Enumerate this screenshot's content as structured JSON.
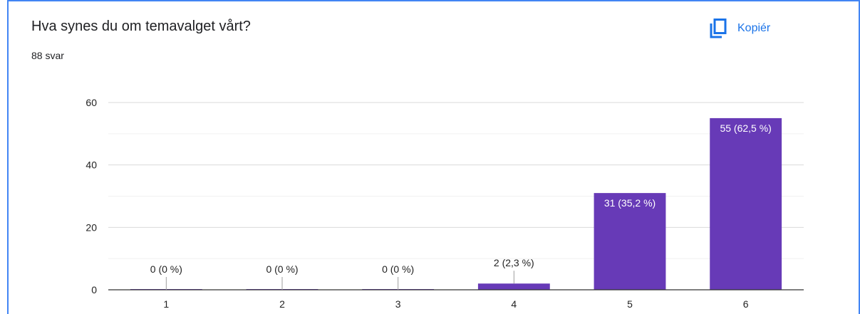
{
  "question": {
    "title": "Hva synes du om temavalget vårt?",
    "responses": "88 svar"
  },
  "actions": {
    "copy_label": "Kopiér",
    "copy_icon": "copy-icon"
  },
  "colors": {
    "bar": "#673ab7",
    "accent": "#1a73e8",
    "frame": "#4285f4"
  },
  "chart_data": {
    "type": "bar",
    "title": "Hva synes du om temavalget vårt?",
    "xlabel": "",
    "ylabel": "",
    "categories": [
      "1",
      "2",
      "3",
      "4",
      "5",
      "6"
    ],
    "values": [
      0,
      0,
      0,
      2,
      31,
      55
    ],
    "data_labels": [
      "0 (0 %)",
      "0 (0 %)",
      "0 (0 %)",
      "2 (2,3 %)",
      "31 (35,2 %)",
      "55 (62,5 %)"
    ],
    "y_ticks": [
      0,
      20,
      40,
      60
    ],
    "ylim": [
      0,
      60
    ],
    "grid": true,
    "legend": "none"
  }
}
